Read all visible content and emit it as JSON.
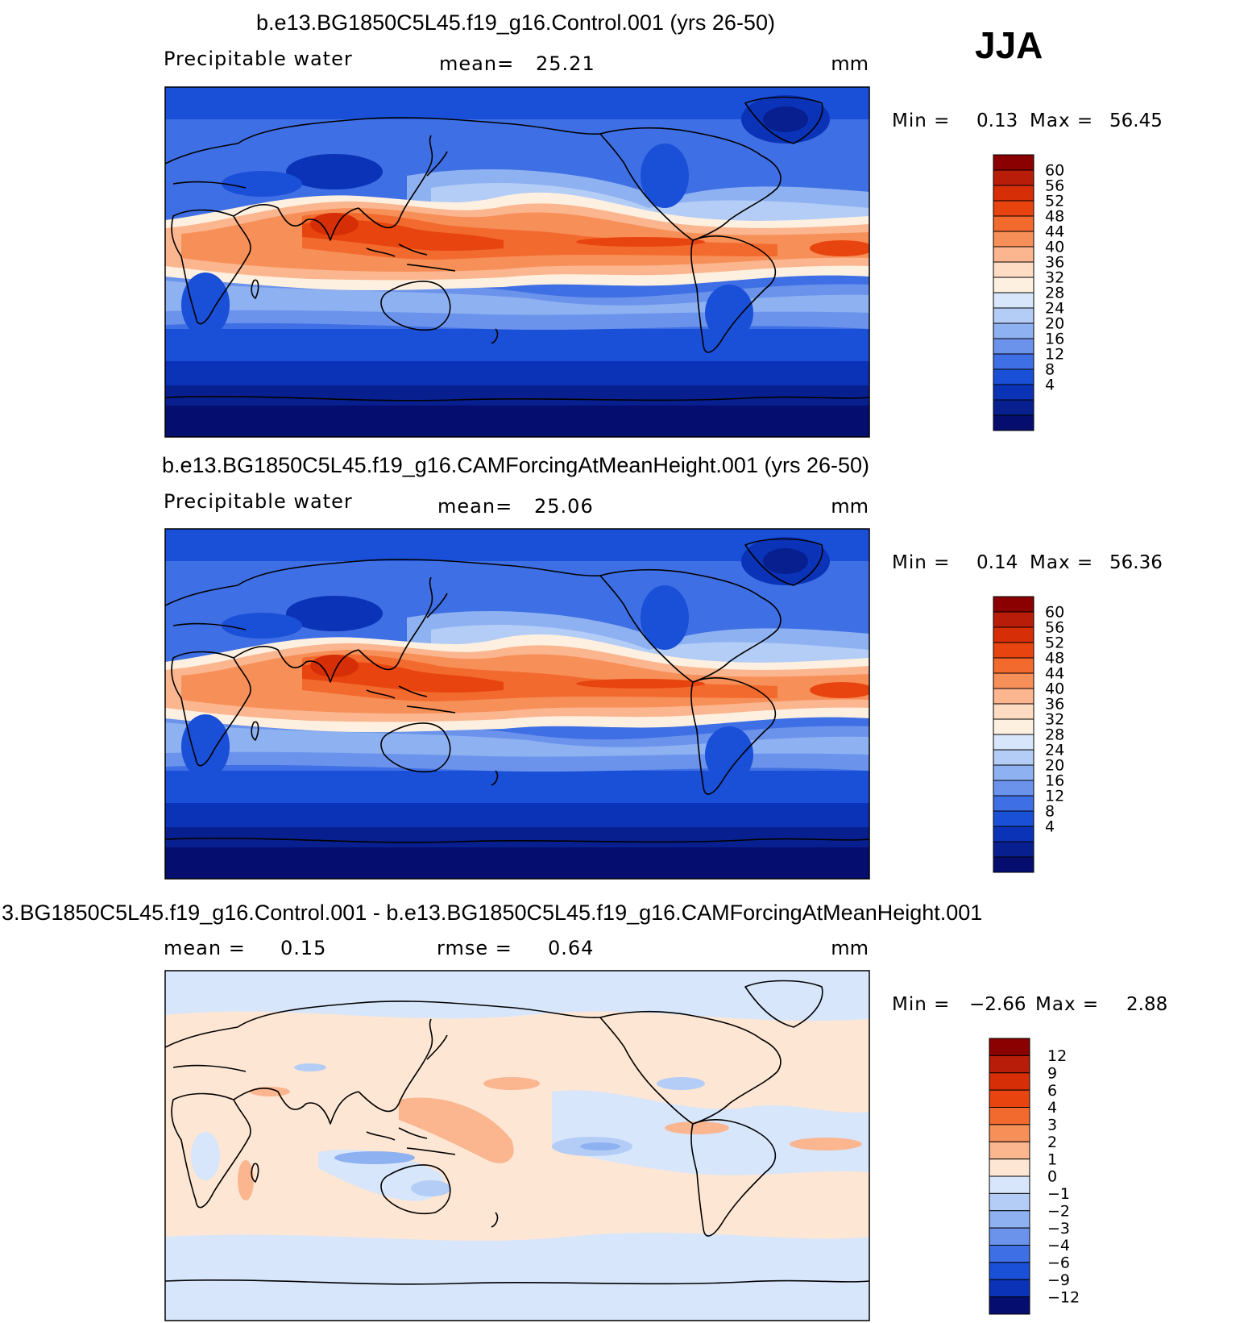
{
  "season": "JJA",
  "chart_data": [
    {
      "type": "heatmap",
      "title": "b.e13.BG1850C5L45.f19_g16.Control.001 (yrs 26-50)",
      "variable": "Precipitable water",
      "mean_label": "mean=",
      "mean": "25.21",
      "units": "mm",
      "min_label": "Min =",
      "min": "0.13",
      "max_label": "Max =",
      "max": "56.45",
      "levels": [
        "60",
        "56",
        "52",
        "48",
        "44",
        "40",
        "36",
        "32",
        "28",
        "24",
        "20",
        "16",
        "12",
        "8",
        "4"
      ],
      "colors": [
        "#8b0000",
        "#b81d0a",
        "#d62e06",
        "#e8440f",
        "#f26a2e",
        "#f78f58",
        "#fbb58f",
        "#fddcc3",
        "#fdf0e0",
        "#d7e6fb",
        "#b4cdf6",
        "#8eb1f1",
        "#6b93ec",
        "#3f6fe4",
        "#1a4fd8",
        "#0b33b8",
        "#071f8f",
        "#050e6f"
      ]
    },
    {
      "type": "heatmap",
      "title": "b.e13.BG1850C5L45.f19_g16.CAMForcingAtMeanHeight.001 (yrs 26-50)",
      "variable": "Precipitable water",
      "mean_label": "mean=",
      "mean": "25.06",
      "units": "mm",
      "min_label": "Min =",
      "min": "0.14",
      "max_label": "Max =",
      "max": "56.36",
      "levels": [
        "60",
        "56",
        "52",
        "48",
        "44",
        "40",
        "36",
        "32",
        "28",
        "24",
        "20",
        "16",
        "12",
        "8",
        "4"
      ],
      "colors": [
        "#8b0000",
        "#b81d0a",
        "#d62e06",
        "#e8440f",
        "#f26a2e",
        "#f78f58",
        "#fbb58f",
        "#fddcc3",
        "#fdf0e0",
        "#d7e6fb",
        "#b4cdf6",
        "#8eb1f1",
        "#6b93ec",
        "#3f6fe4",
        "#1a4fd8",
        "#0b33b8",
        "#071f8f",
        "#050e6f"
      ]
    },
    {
      "type": "heatmap",
      "title": "3.BG1850C5L45.f19_g16.Control.001 - b.e13.BG1850C5L45.f19_g16.CAMForcingAtMeanHeight.001",
      "mean_label": "mean =",
      "mean": "0.15",
      "rmse_label": "rmse =",
      "rmse": "0.64",
      "units": "mm",
      "min_label": "Min =",
      "min": "−2.66",
      "max_label": "Max =",
      "max": "2.88",
      "levels": [
        "12",
        "9",
        "6",
        "4",
        "3",
        "2",
        "1",
        "0",
        "−1",
        "−2",
        "−3",
        "−4",
        "−6",
        "−9",
        "−12"
      ],
      "colors": [
        "#8b0000",
        "#b81d0a",
        "#d62e06",
        "#e8440f",
        "#f26a2e",
        "#f78f58",
        "#fbb58f",
        "#fde6d3",
        "#d7e6fb",
        "#b4cdf6",
        "#8eb1f1",
        "#6b93ec",
        "#3f6fe4",
        "#1a4fd8",
        "#0b33b8",
        "#050e6f"
      ]
    }
  ]
}
